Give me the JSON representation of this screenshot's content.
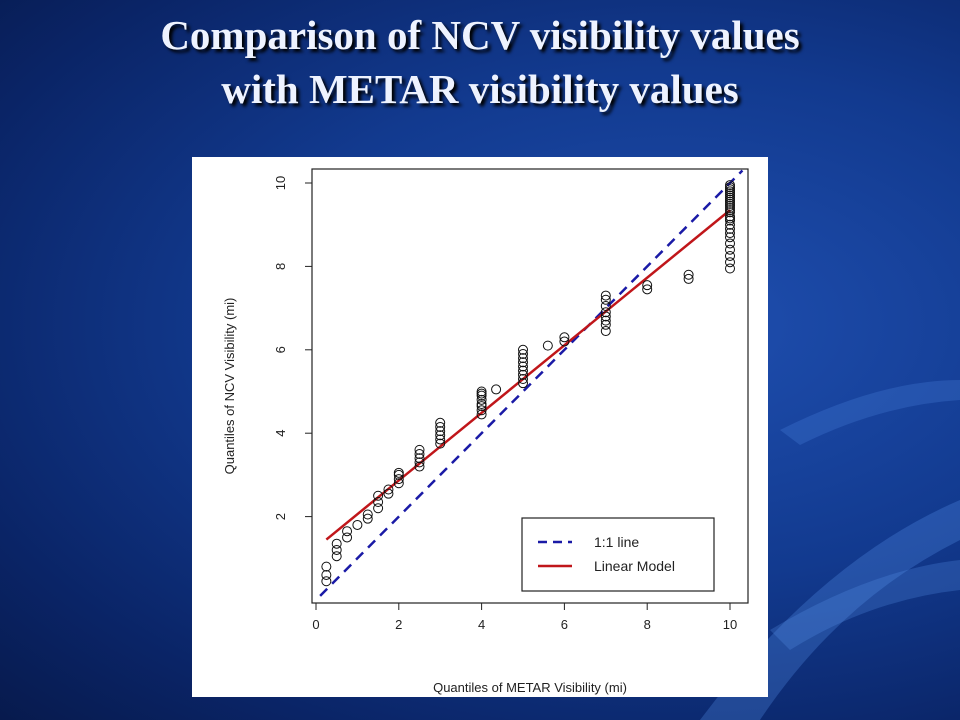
{
  "slide": {
    "title_line1": "Comparison of NCV visibility values",
    "title_line2": "with METAR visibility values"
  },
  "colors": {
    "one_to_one": "#1a1aa6",
    "linear_model": "#c0161a",
    "points": "#111111"
  },
  "chart_data": {
    "type": "scatter",
    "xlabel": "Quantiles of METAR Visibility (mi)",
    "ylabel": "Quantiles of NCV Visibility (mi)",
    "xlim": [
      0,
      10.4
    ],
    "ylim": [
      0,
      10.4
    ],
    "xticks": [
      "0",
      "2",
      "4",
      "6",
      "8",
      "10"
    ],
    "yticks": [
      "2",
      "4",
      "6",
      "8",
      "10"
    ],
    "legend_position": "bottom-right",
    "legend": [
      {
        "label": "1:1 line",
        "style": "dashed",
        "color": "#1a1aa6"
      },
      {
        "label": "Linear Model",
        "style": "solid",
        "color": "#c0161a"
      }
    ],
    "lines": {
      "one_to_one": {
        "x": [
          0.1,
          10.3
        ],
        "y": [
          0.1,
          10.3
        ]
      },
      "linear_model": {
        "x": [
          0.25,
          10
        ],
        "y": [
          1.45,
          9.35
        ]
      }
    },
    "points": {
      "x": [
        0.25,
        0.25,
        0.25,
        0.5,
        0.5,
        0.5,
        0.75,
        0.75,
        1.0,
        1.25,
        1.25,
        1.5,
        1.5,
        1.5,
        1.75,
        1.75,
        2.0,
        2.0,
        2.0,
        2.0,
        2.5,
        2.5,
        2.5,
        2.5,
        2.5,
        3.0,
        3.0,
        3.0,
        3.0,
        3.0,
        3.0,
        4.0,
        4.0,
        4.0,
        4.0,
        4.0,
        4.0,
        4.0,
        4.0,
        4.35,
        5.0,
        5.0,
        5.0,
        5.0,
        5.0,
        5.0,
        5.0,
        5.0,
        5.0,
        5.6,
        6.0,
        6.0,
        7.0,
        7.0,
        7.0,
        7.0,
        7.0,
        7.0,
        7.0,
        7.0,
        8.0,
        8.0,
        9.0,
        9.0,
        10.0,
        10.0,
        10.0,
        10.0,
        10.0,
        10.0,
        10.0,
        10.0,
        10.0,
        10.0,
        10.0,
        10.0,
        10.0,
        10.0,
        10.0,
        10.0,
        10.0,
        10.0,
        10.0,
        10.0,
        10.0,
        10.0,
        10.0,
        10.0,
        10.0,
        10.0
      ],
      "y": [
        0.45,
        0.6,
        0.8,
        1.05,
        1.2,
        1.35,
        1.5,
        1.65,
        1.8,
        1.95,
        2.05,
        2.2,
        2.35,
        2.5,
        2.55,
        2.65,
        2.8,
        2.9,
        3.0,
        3.05,
        3.2,
        3.3,
        3.4,
        3.5,
        3.6,
        3.75,
        3.85,
        3.95,
        4.05,
        4.15,
        4.25,
        4.45,
        4.55,
        4.65,
        4.7,
        4.8,
        4.9,
        4.95,
        5.0,
        5.05,
        5.2,
        5.3,
        5.4,
        5.5,
        5.6,
        5.7,
        5.8,
        5.9,
        6.0,
        6.1,
        6.2,
        6.3,
        6.45,
        6.6,
        6.7,
        6.8,
        6.9,
        7.05,
        7.2,
        7.3,
        7.45,
        7.55,
        7.7,
        7.8,
        7.95,
        8.1,
        8.25,
        8.4,
        8.55,
        8.7,
        8.8,
        8.9,
        9.0,
        9.1,
        9.15,
        9.2,
        9.3,
        9.35,
        9.4,
        9.45,
        9.5,
        9.55,
        9.6,
        9.65,
        9.7,
        9.75,
        9.8,
        9.85,
        9.9,
        9.95
      ]
    }
  }
}
